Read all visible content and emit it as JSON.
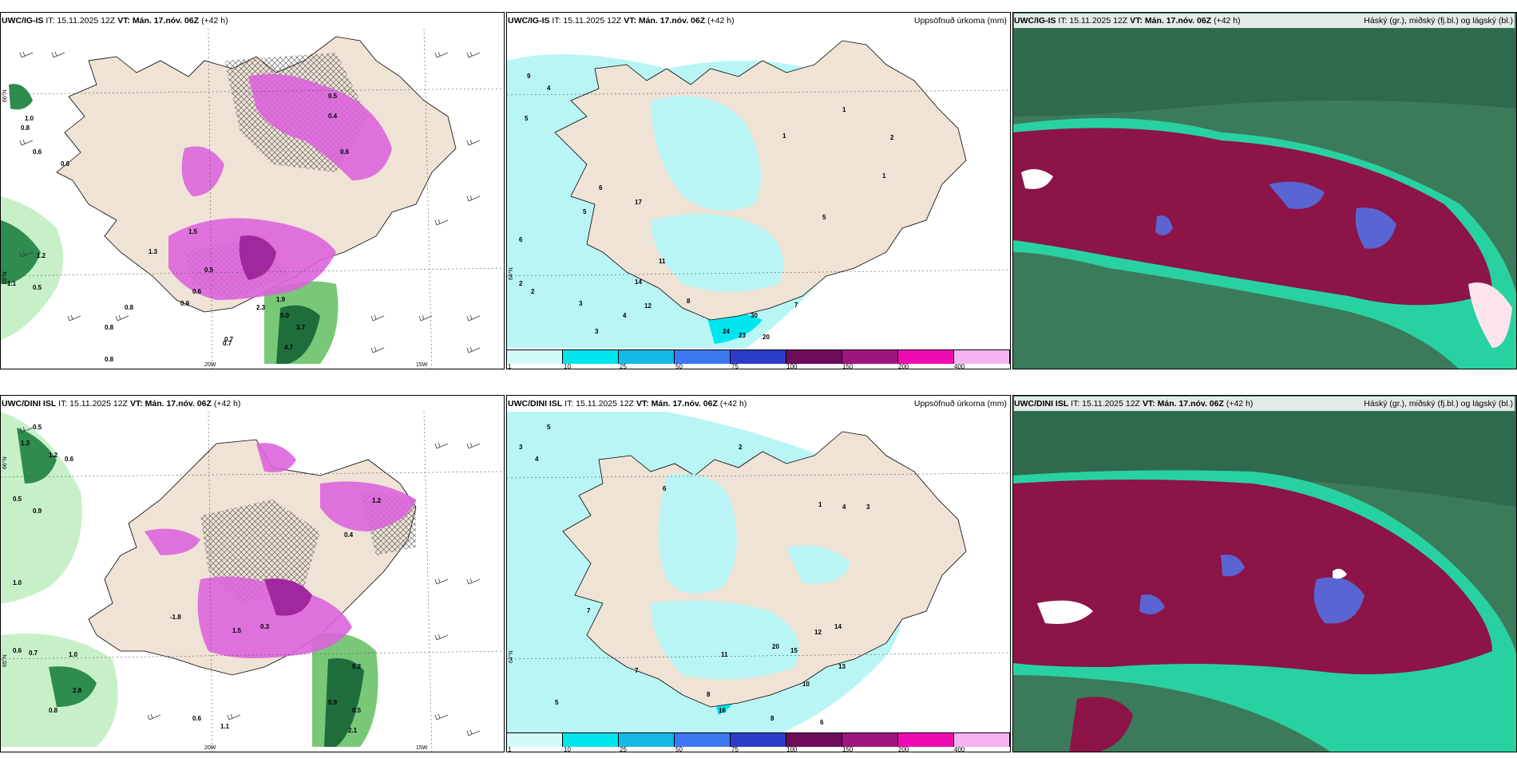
{
  "panels": {
    "p1": {
      "model": "UWC/IG-IS",
      "it": "IT: 15.11.2025 12Z",
      "vt": "VT: Mán. 17.nóv. 06Z",
      "lead": "(+42 h)",
      "right": ""
    },
    "p2": {
      "model": "UWC/IG-IS",
      "it": "IT: 15.11.2025 12Z",
      "vt": "VT: Mán. 17.nóv. 06Z",
      "lead": "(+42 h)",
      "right": "Uppsöfnuð úrkoma (mm)"
    },
    "p3": {
      "model": "UWC/IG-IS",
      "it": "IT: 15.11.2025 12Z",
      "vt": "VT: Mán. 17.nóv. 06Z",
      "lead": "(+42 h)",
      "right": "Háský (gr.), miðský (fj.bl.) og lágský (bl.)"
    },
    "p4": {
      "model": "UWC/DINI ISL",
      "it": "IT: 15.11.2025 12Z",
      "vt": "VT: Mán. 17.nóv. 06Z",
      "lead": "(+42 h)",
      "right": ""
    },
    "p5": {
      "model": "UWC/DINI ISL",
      "it": "IT: 15.11.2025 12Z",
      "vt": "VT: Mán. 17.nóv. 06Z",
      "lead": "(+42 h)",
      "right": "Uppsöfnuð úrkoma (mm)"
    },
    "p6": {
      "model": "UWC/DINI ISL",
      "it": "IT: 15.11.2025 12Z",
      "vt": "VT: Mán. 17.nóv. 06Z",
      "lead": "(+42 h)",
      "right": "Háský (gr.), miðský (fj.bl.) og lágský (bl.)"
    }
  },
  "axes": {
    "lat66": "66°N",
    "lat64": "64°N",
    "lat65": "65°N",
    "lon20": "20W",
    "lon15": "15W"
  },
  "colorbar": {
    "ticks": [
      "1",
      "10",
      "25",
      "50",
      "75",
      "100",
      "150",
      "200",
      "400"
    ],
    "colors": [
      "#d4f9f9",
      "#00e6ee",
      "#14b9e6",
      "#3c78f0",
      "#2d3cc8",
      "#6e0a5a",
      "#a0147f",
      "#f00ab4",
      "#f5b4f0"
    ]
  },
  "colors": {
    "land": "#efe3d6",
    "green_light": "#c8f0c8",
    "green_mid": "#78c878",
    "green_dark": "#1e6e3c",
    "magenta": "#dc64dc",
    "magenta_dark": "#b43cb4",
    "cyan_light": "#b9f5f5",
    "cyan": "#00e6ee",
    "cloud_bg": "#3c7a5c",
    "cloud_maroon": "#8c1446",
    "cloud_teal": "#28d2a0",
    "cloud_blue": "#5a64d2"
  },
  "labels": {
    "p1": [
      "0.6",
      "0.8",
      "1.0",
      "0.6",
      "0.5",
      "1.2",
      "0.8",
      "1.1",
      "0.5",
      "0.8",
      "0.6",
      "0.9",
      "1.3",
      "0.7",
      "0.8",
      "1.9",
      "2.3",
      "3.7",
      "5.0",
      "4.7",
      "0.7",
      "0.4",
      "0.6",
      "0.5",
      "1.5"
    ],
    "p2": [
      "9",
      "4",
      "5",
      "2",
      "3",
      "4",
      "1",
      "2",
      "6",
      "17",
      "14",
      "12",
      "11",
      "24",
      "23",
      "20",
      "30",
      "7",
      "8",
      "1",
      "2",
      "3",
      "5",
      "5",
      "6",
      "1"
    ],
    "p4": [
      "0.5",
      "1.3",
      "1.2",
      "0.6",
      "0.9",
      "0.5",
      "1.0",
      "0.6",
      "0.7",
      "1.0",
      "0.8",
      "2.8",
      "0.6",
      "1.1",
      "2.1",
      "0.9",
      "0.5",
      "0.2",
      "1.2",
      "1.5",
      "-1.8",
      "0.4",
      "0.3"
    ],
    "p5": [
      "3",
      "5",
      "4",
      "2",
      "6",
      "7",
      "1",
      "8",
      "11",
      "20",
      "15",
      "12",
      "16",
      "14",
      "13",
      "10",
      "6",
      "8",
      "4",
      "3",
      "5",
      "7"
    ]
  }
}
